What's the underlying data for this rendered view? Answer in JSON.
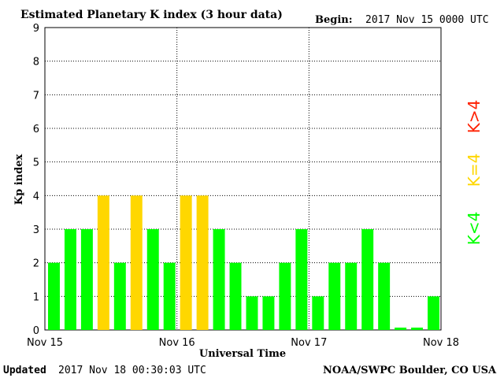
{
  "header": {
    "title": "Estimated Planetary K index (3 hour data)",
    "begin_label": "Begin:",
    "begin_value": "2017 Nov 15 0000 UTC"
  },
  "footer": {
    "updated_label": "Updated",
    "updated_value": "2017 Nov 18 00:30:03 UTC",
    "source": "NOAA/SWPC Boulder, CO USA"
  },
  "legend": {
    "low": "K<4",
    "equal": "K=4",
    "high": "K>4"
  },
  "colors": {
    "low": "#00ff00",
    "equal": "#ffd700",
    "high": "#ff2000"
  },
  "chart_data": {
    "type": "bar",
    "title": "Estimated Planetary K index (3 hour data)",
    "xlabel": "Universal Time",
    "ylabel": "Kp index",
    "ylim": [
      0,
      9
    ],
    "yticks": [
      "0",
      "1",
      "2",
      "3",
      "4",
      "5",
      "6",
      "7",
      "8",
      "9"
    ],
    "xticks": [
      "Nov 15",
      "Nov 16",
      "Nov 17",
      "Nov 18"
    ],
    "grid": true,
    "bar_interval_hours": 3,
    "values": [
      2,
      3,
      3,
      4,
      2,
      4,
      3,
      2,
      4,
      4,
      3,
      2,
      1,
      1,
      2,
      3,
      1,
      2,
      2,
      3,
      2,
      0,
      0,
      1
    ]
  }
}
